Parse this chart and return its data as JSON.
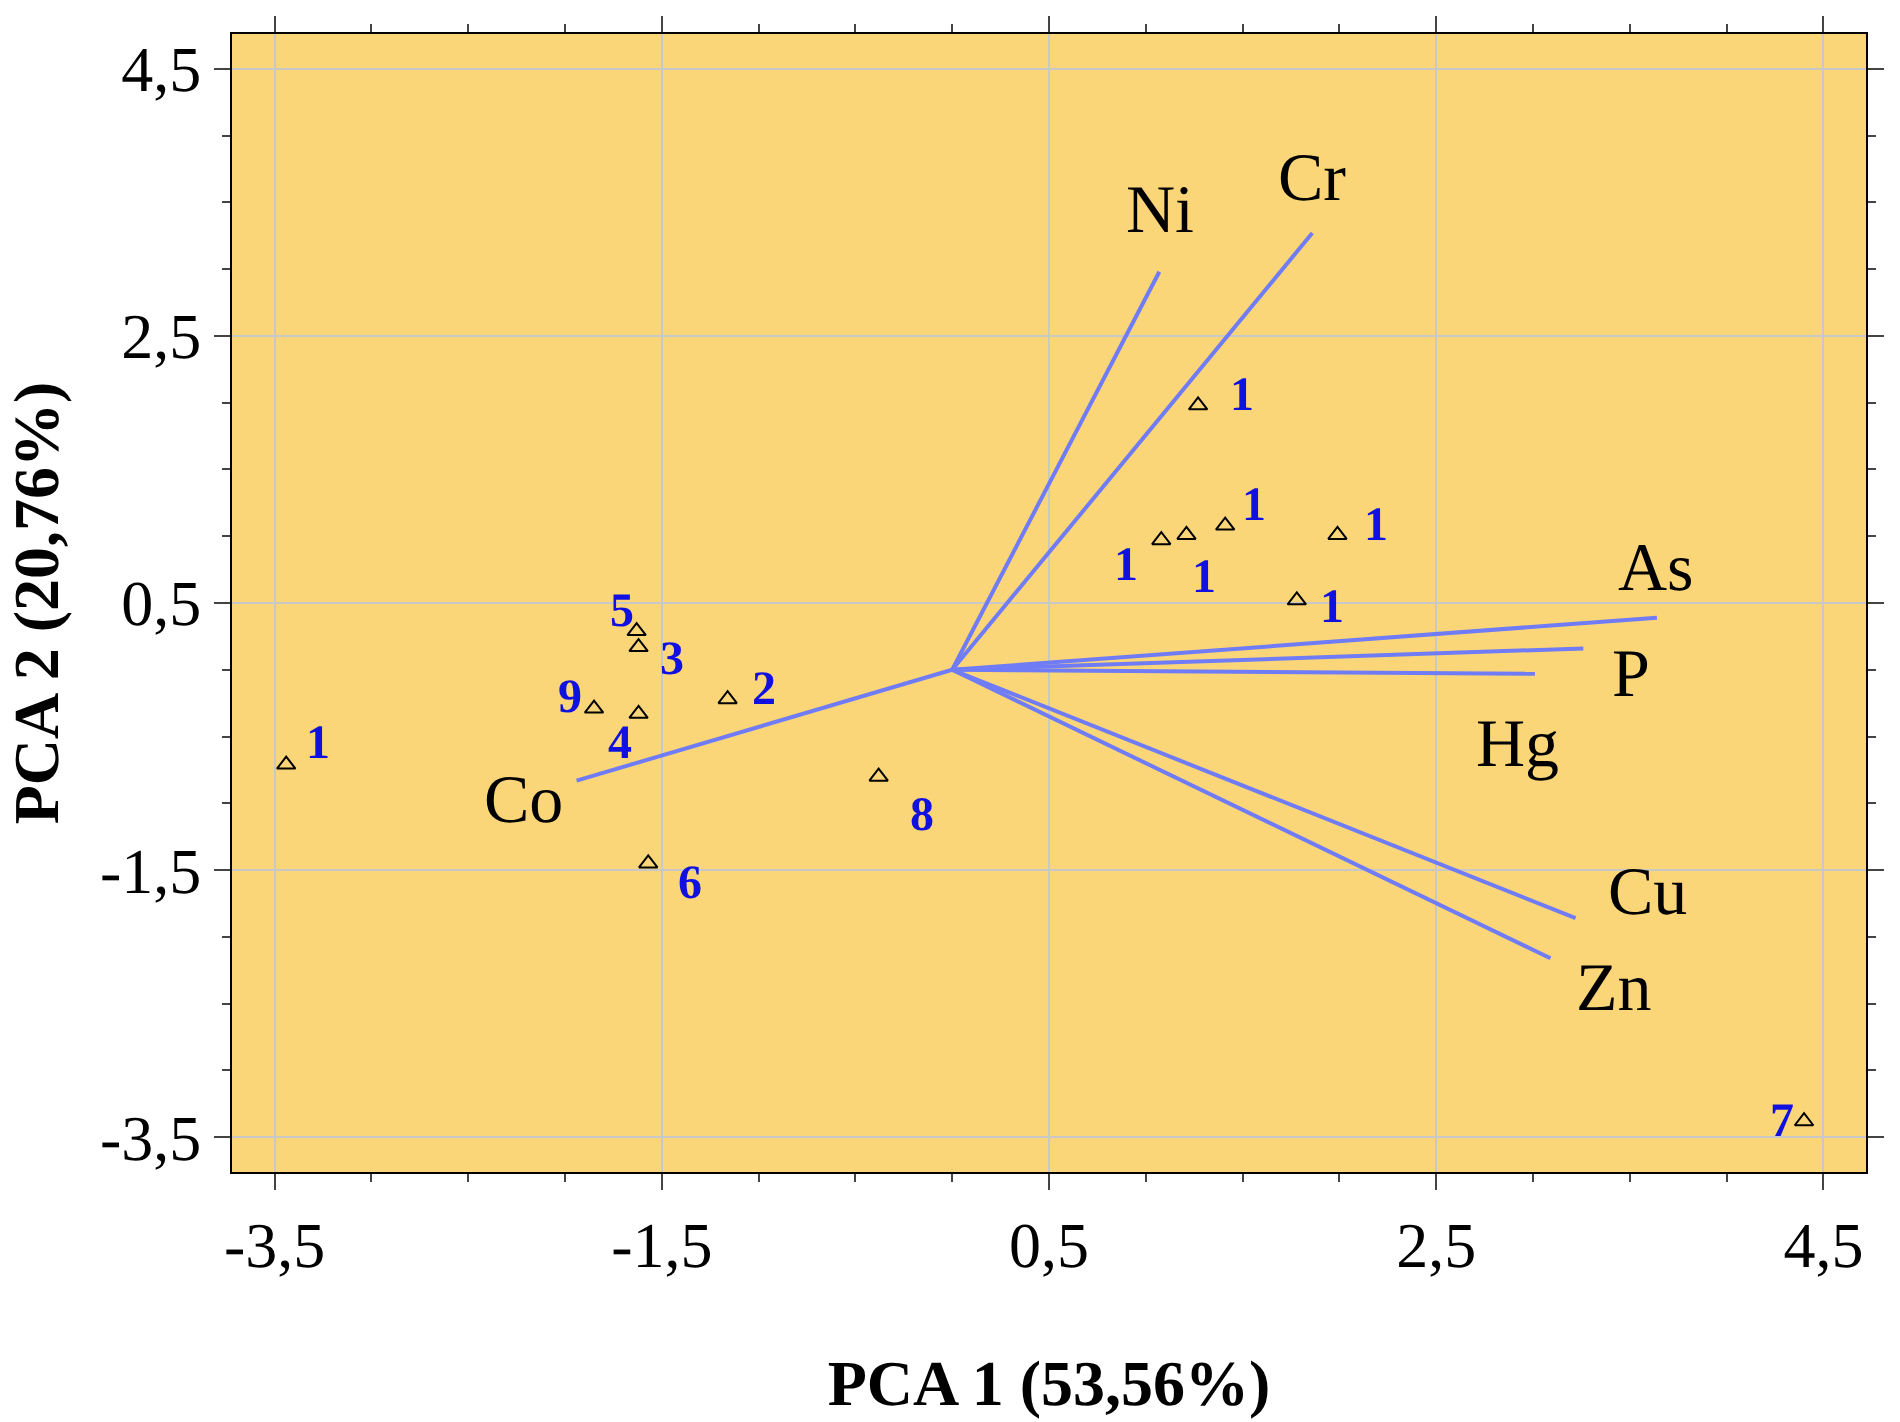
{
  "chart_data": {
    "type": "scatter",
    "xlabel": "PCA 1 (53,56%)",
    "ylabel": "PCA 2 (20,76%)",
    "xlim": [
      -3.72,
      4.72
    ],
    "ylim": [
      -3.76,
      4.76
    ],
    "xticks": [
      {
        "value": -3.5,
        "label": "-3,5"
      },
      {
        "value": -1.5,
        "label": "-1,5"
      },
      {
        "value": 0.5,
        "label": "0,5"
      },
      {
        "value": 2.5,
        "label": "2,5"
      },
      {
        "value": 4.5,
        "label": "4,5"
      }
    ],
    "yticks": [
      {
        "value": -3.5,
        "label": "-3,5"
      },
      {
        "value": -1.5,
        "label": "-1,5"
      },
      {
        "value": 0.5,
        "label": "0,5"
      },
      {
        "value": 2.5,
        "label": "2,5"
      },
      {
        "value": 4.5,
        "label": "4,5"
      }
    ],
    "grid": true,
    "series": [
      {
        "marker": "triangle",
        "color": "#000000",
        "x": [
          -3.44,
          -1.63,
          -1.62,
          -1.85,
          -1.62,
          -1.16,
          -1.57,
          -0.38,
          4.4,
          1.27,
          1.08,
          1.21,
          1.41,
          1.99,
          1.78
        ],
        "values": [
          -0.71,
          0.29,
          0.17,
          -0.29,
          -0.33,
          -0.22,
          -1.45,
          -0.8,
          -3.38,
          1.98,
          0.97,
          1.01,
          1.08,
          1.01,
          0.52
        ]
      },
      {
        "type": "line",
        "color": "#6f7cf5",
        "x": [
          0,
          1.07,
          null,
          0,
          1.86,
          null,
          0,
          3.64,
          null,
          0,
          3.26,
          null,
          0,
          3.01,
          null,
          0,
          3.22,
          null,
          0,
          3.09,
          null,
          0,
          -1.94
        ],
        "values": [
          0,
          2.98,
          null,
          0,
          3.27,
          null,
          0,
          0.39,
          null,
          0,
          0.16,
          null,
          0,
          -0.03,
          null,
          0,
          -1.86,
          null,
          0,
          -2.16,
          null,
          0,
          -0.83
        ]
      }
    ],
    "annotations": [
      {
        "text": "Ni",
        "x": 1.07,
        "y": 2.98
      },
      {
        "text": "Cr",
        "x": 1.86,
        "y": 3.27
      },
      {
        "text": "As",
        "x": 3.64,
        "y": 0.39
      },
      {
        "text": "P",
        "x": 3.26,
        "y": 0.16
      },
      {
        "text": "Hg",
        "x": 3.01,
        "y": -0.03
      },
      {
        "text": "Cu",
        "x": 3.22,
        "y": -1.86
      },
      {
        "text": "Zn",
        "x": 3.09,
        "y": -2.16
      },
      {
        "text": "Co",
        "x": -1.94,
        "y": -0.83
      },
      {
        "text": "1",
        "x": -3.44,
        "y": -0.71
      },
      {
        "text": "5",
        "x": -1.63,
        "y": 0.29
      },
      {
        "text": "3",
        "x": -1.62,
        "y": 0.17
      },
      {
        "text": "9",
        "x": -1.85,
        "y": -0.29
      },
      {
        "text": "4",
        "x": -1.62,
        "y": -0.33
      },
      {
        "text": "2",
        "x": -1.16,
        "y": -0.22
      },
      {
        "text": "6",
        "x": -1.57,
        "y": -1.45
      },
      {
        "text": "8",
        "x": -0.38,
        "y": -0.8
      },
      {
        "text": "7",
        "x": 4.4,
        "y": -3.38
      },
      {
        "text": "1",
        "x": 1.27,
        "y": 1.98
      },
      {
        "text": "1",
        "x": 1.08,
        "y": 0.97
      },
      {
        "text": "1",
        "x": 1.21,
        "y": 1.01
      },
      {
        "text": "1",
        "x": 1.41,
        "y": 1.08
      },
      {
        "text": "1",
        "x": 1.99,
        "y": 1.01
      },
      {
        "text": "1",
        "x": 1.78,
        "y": 0.52
      }
    ]
  }
}
